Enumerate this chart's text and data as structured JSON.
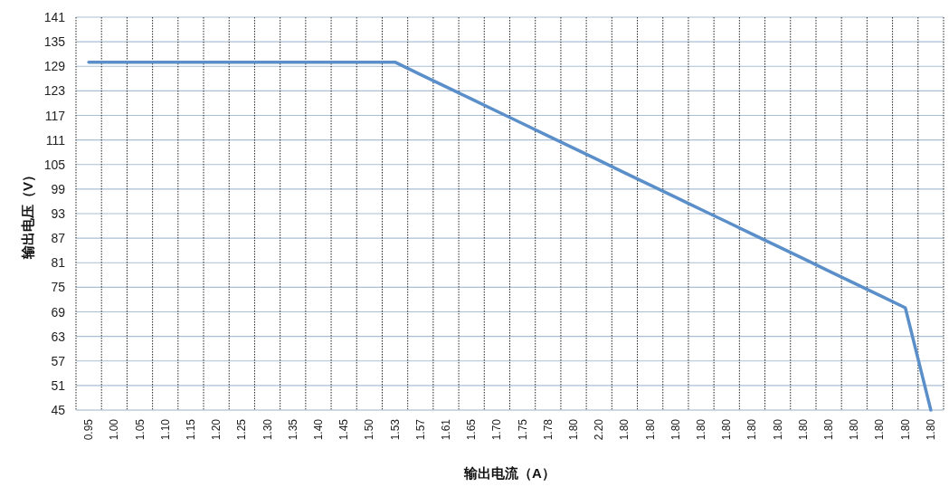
{
  "chart_data": {
    "type": "line",
    "xlabel": "输出电流（A）",
    "ylabel": "输出电压（V）",
    "categories": [
      "0.95",
      "1.00",
      "1.05",
      "1.10",
      "1.15",
      "1.20",
      "1.25",
      "1.30",
      "1.35",
      "1.40",
      "1.45",
      "1.50",
      "1.53",
      "1.57",
      "1.61",
      "1.65",
      "1.70",
      "1.75",
      "1.78",
      "1.80",
      "2.20",
      "1.80",
      "1.80",
      "1.80",
      "1.80",
      "1.80",
      "1.80",
      "1.80",
      "1.80",
      "1.80",
      "1.80",
      "1.80",
      "1.80",
      "1.80"
    ],
    "series": [
      {
        "color": "#5b8fc9",
        "values": [
          130,
          130,
          130,
          130,
          130,
          130,
          130,
          130,
          130,
          130,
          130,
          130,
          130,
          127,
          124,
          121,
          118,
          115,
          112,
          109,
          106,
          103,
          100,
          97,
          94,
          91,
          88,
          85,
          82,
          79,
          76,
          73,
          70,
          45
        ]
      }
    ],
    "ylim": [
      45,
      141
    ],
    "yticks": [
      45,
      51,
      57,
      63,
      69,
      75,
      81,
      87,
      93,
      99,
      105,
      111,
      117,
      123,
      129,
      135,
      141
    ],
    "grid": true
  }
}
